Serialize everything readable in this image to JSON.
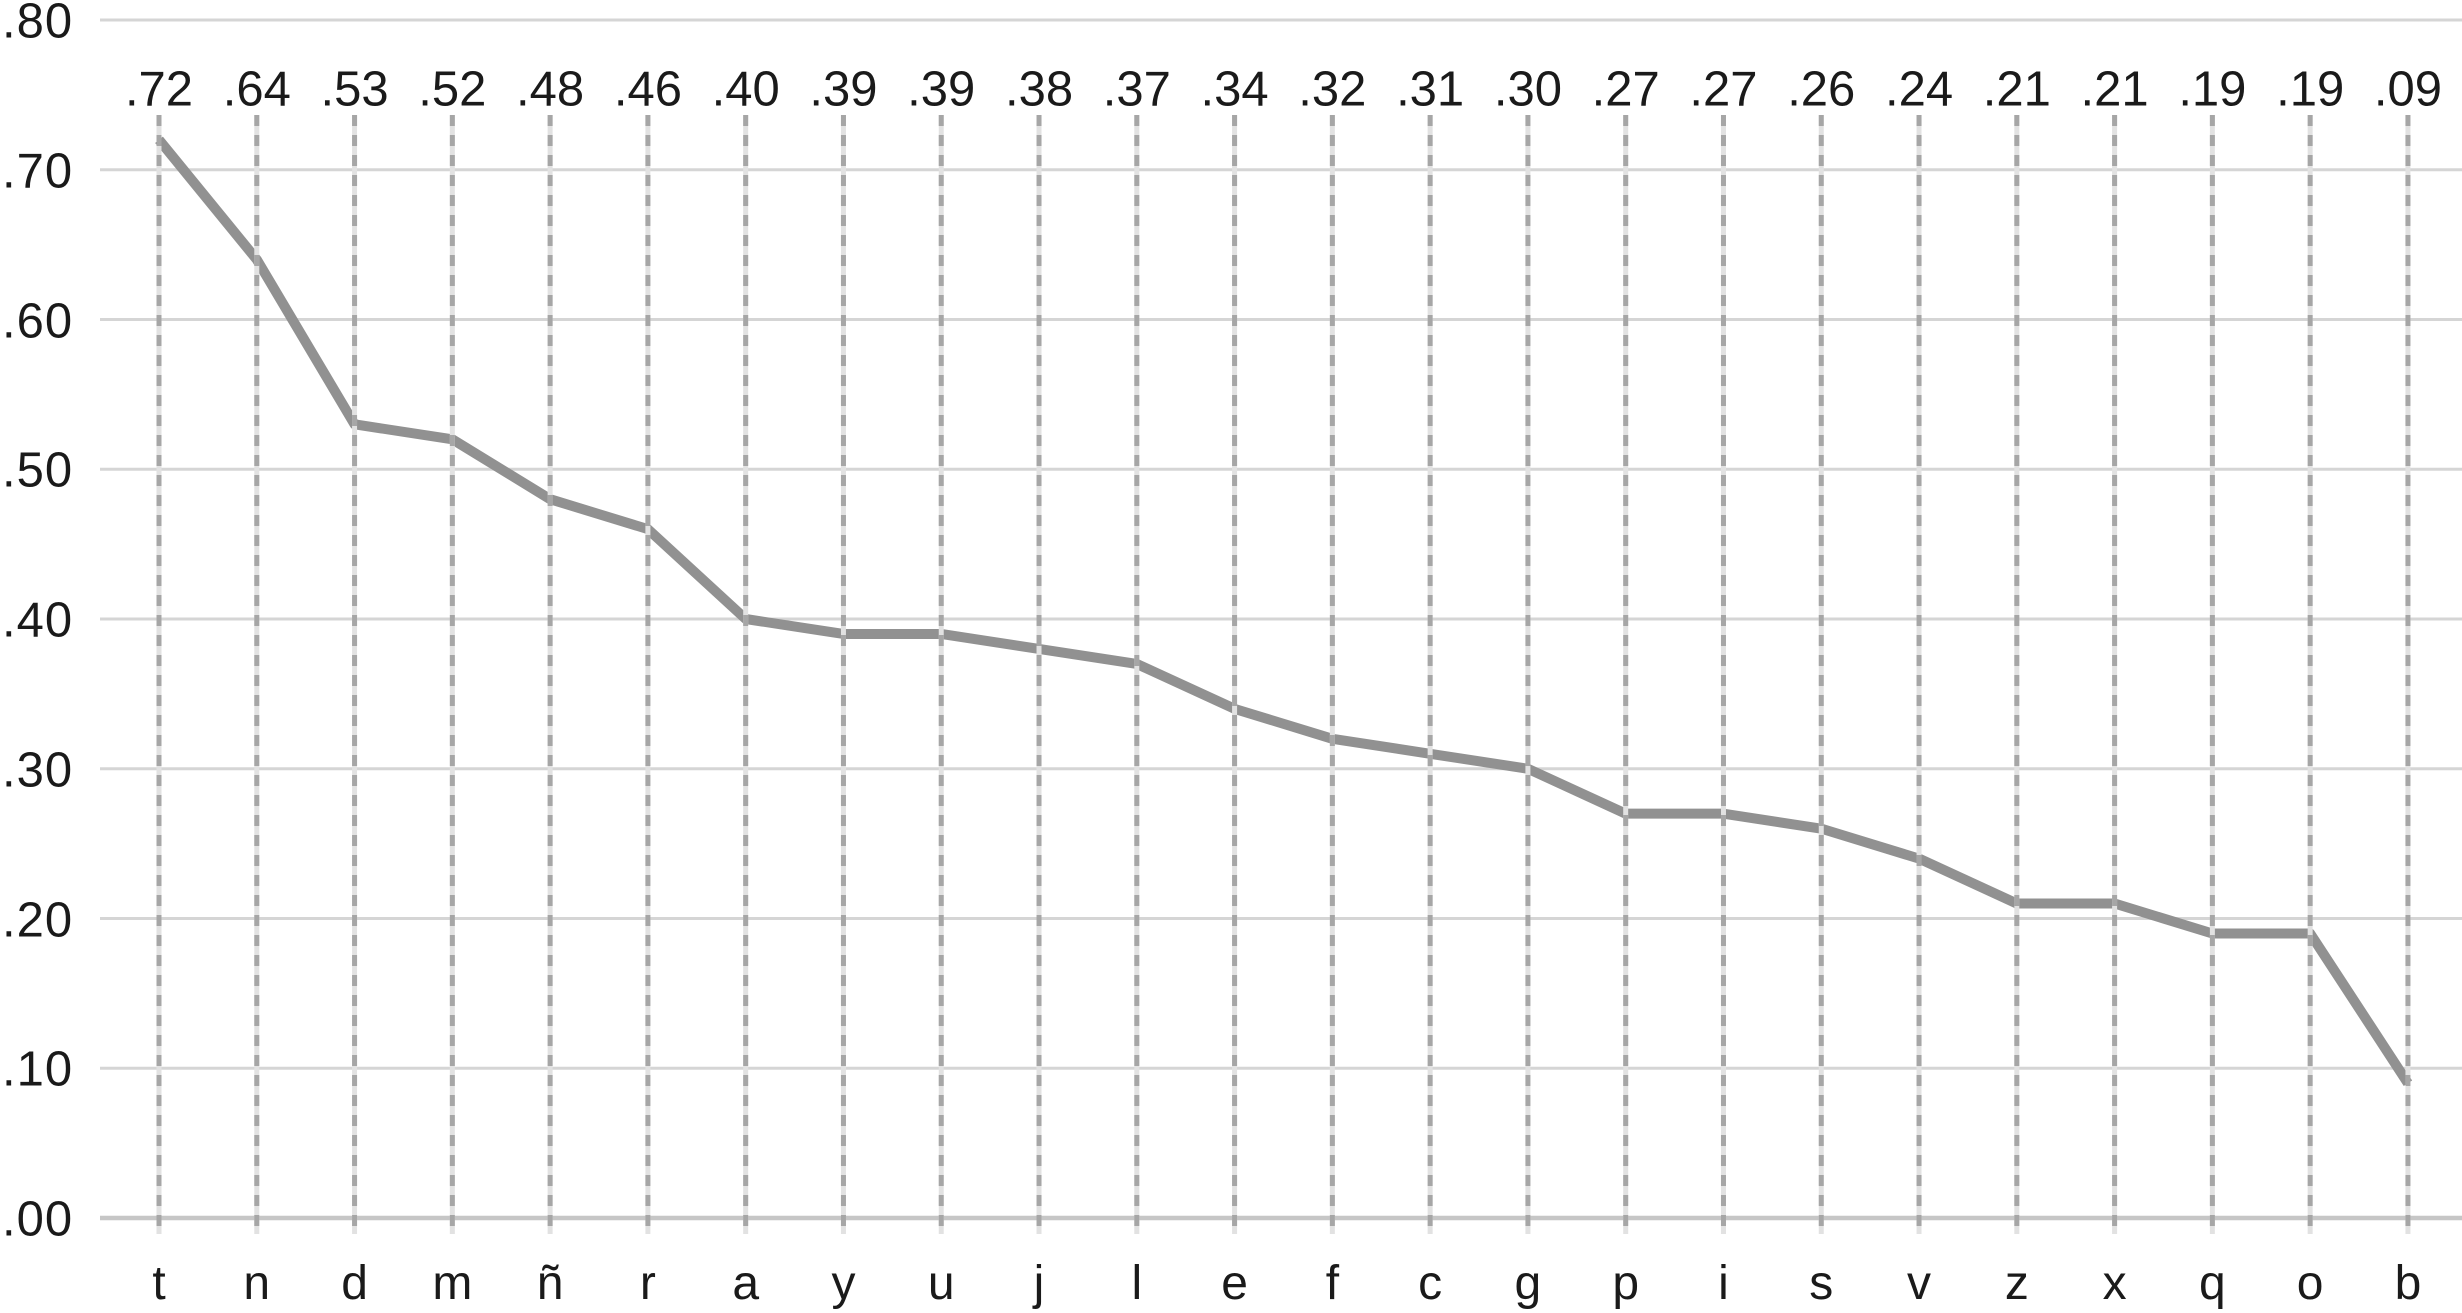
{
  "chart_data": {
    "type": "line",
    "title": "",
    "xlabel": "",
    "ylabel": "",
    "categories": [
      "t",
      "n",
      "d",
      "m",
      "ñ",
      "r",
      "a",
      "y",
      "u",
      "j",
      "l",
      "e",
      "f",
      "c",
      "g",
      "p",
      "i",
      "s",
      "v",
      "z",
      "x",
      "q",
      "o",
      "b"
    ],
    "values": [
      0.72,
      0.64,
      0.53,
      0.52,
      0.48,
      0.46,
      0.4,
      0.39,
      0.39,
      0.38,
      0.37,
      0.34,
      0.32,
      0.31,
      0.3,
      0.27,
      0.27,
      0.26,
      0.24,
      0.21,
      0.21,
      0.19,
      0.19,
      0.09
    ],
    "value_labels": [
      ".72",
      ".64",
      ".53",
      ".52",
      ".48",
      ".46",
      ".40",
      ".39",
      ".39",
      ".38",
      ".37",
      ".34",
      ".32",
      ".31",
      ".30",
      ".27",
      ".27",
      ".26",
      ".24",
      ".21",
      ".21",
      ".19",
      ".19",
      ".09"
    ],
    "y_ticks": [
      0.8,
      0.7,
      0.6,
      0.5,
      0.4,
      0.3,
      0.2,
      0.1,
      0.0
    ],
    "y_tick_labels": [
      ".80",
      ".70",
      ".60",
      ".50",
      ".40",
      ".30",
      ".20",
      ".10",
      ".00"
    ],
    "ylim": [
      0.0,
      0.8
    ],
    "legend": "none",
    "grid": {
      "horizontal": "solid-light",
      "vertical": "dashed-droplines"
    },
    "colors": {
      "text": "#1a1a1a",
      "data_line": "#919191",
      "horizontal_gridline": "#d5d5d5",
      "axis_line": "#c6c6c6",
      "vertical_dash": "#a6a6a6",
      "vertical_dash_backing": "#e2e2e2"
    }
  }
}
